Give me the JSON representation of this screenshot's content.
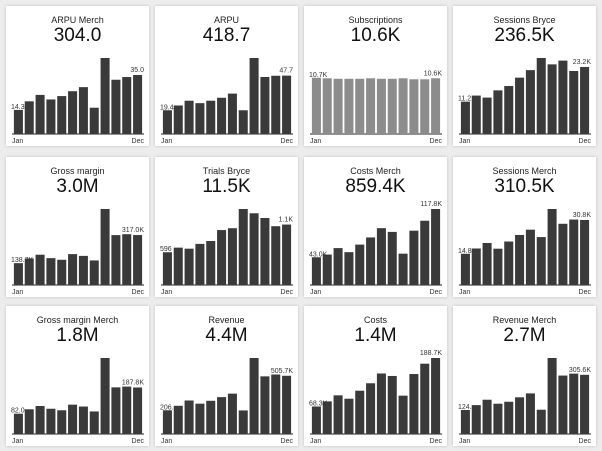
{
  "chart_data": [
    {
      "type": "bar",
      "title": "ARPU Merch",
      "kpi": "304.0",
      "categories": [
        "Jan",
        "Feb",
        "Mar",
        "Apr",
        "May",
        "Jun",
        "Jul",
        "Aug",
        "Sep",
        "Oct",
        "Nov",
        "Dec"
      ],
      "values": [
        14.3,
        19.4,
        23.2,
        20.5,
        22.5,
        25.4,
        27.8,
        15.6,
        45.1,
        32.2,
        33.8,
        35.0
      ],
      "first_label": "14.3",
      "last_label": "35.0",
      "xlabels": [
        "Jan",
        "Dec"
      ],
      "color": "#3a3a3a"
    },
    {
      "type": "bar",
      "title": "ARPU",
      "kpi": "418.7",
      "categories": [
        "Jan",
        "Feb",
        "Mar",
        "Apr",
        "May",
        "Jun",
        "Jul",
        "Aug",
        "Sep",
        "Oct",
        "Nov",
        "Dec"
      ],
      "values": [
        19.4,
        23.3,
        27.2,
        25.2,
        27.2,
        29.6,
        33.0,
        19.4,
        62.1,
        46.6,
        47.6,
        47.7
      ],
      "first_label": "19.4",
      "last_label": "47.7",
      "xlabels": [
        "Jan",
        "Dec"
      ],
      "color": "#3a3a3a"
    },
    {
      "type": "bar",
      "title": "Subscriptions",
      "kpi": "10.6K",
      "categories": [
        "Jan",
        "Feb",
        "Mar",
        "Apr",
        "May",
        "Jun",
        "Jul",
        "Aug",
        "Sep",
        "Oct",
        "Nov",
        "Dec"
      ],
      "values": [
        10.7,
        10.6,
        10.5,
        10.5,
        10.5,
        10.6,
        10.5,
        10.5,
        10.6,
        10.4,
        10.4,
        10.6
      ],
      "first_label": "10.7K",
      "last_label": "10.6K",
      "xlabels": [
        "Jan",
        "Dec"
      ],
      "color": "#8c8c8c",
      "faded": true
    },
    {
      "type": "bar",
      "title": "Sessions Bryce",
      "kpi": "236.5K",
      "categories": [
        "Jan",
        "Feb",
        "Mar",
        "Apr",
        "May",
        "Jun",
        "Jul",
        "Aug",
        "Sep",
        "Oct",
        "Nov",
        "Dec"
      ],
      "values": [
        11.2,
        13.3,
        12.6,
        15.1,
        16.6,
        19.5,
        22.1,
        26.3,
        24.1,
        25.4,
        21.8,
        23.2
      ],
      "first_label": "11.2",
      "last_label": "23.2K",
      "xlabels": [
        "Jan",
        "Dec"
      ],
      "color": "#3a3a3a"
    },
    {
      "type": "bar",
      "title": "Gross margin",
      "kpi": "3.0M",
      "categories": [
        "Jan",
        "Feb",
        "Mar",
        "Apr",
        "May",
        "Jun",
        "Jul",
        "Aug",
        "Sep",
        "Oct",
        "Nov",
        "Dec"
      ],
      "values": [
        138.7,
        168.4,
        192.3,
        170.5,
        160.2,
        196.1,
        184.7,
        155.8,
        482.4,
        316.6,
        322.3,
        317.0
      ],
      "first_label": "138.7K",
      "last_label": "317.0K",
      "xlabels": [
        "Jan",
        "Dec"
      ],
      "color": "#3a3a3a"
    },
    {
      "type": "bar",
      "title": "Trials Bryce",
      "kpi": "11.5K",
      "categories": [
        "Jan",
        "Feb",
        "Mar",
        "Apr",
        "May",
        "Jun",
        "Jul",
        "Aug",
        "Sep",
        "Oct",
        "Nov",
        "Dec"
      ],
      "values": [
        596,
        680,
        661,
        748,
        801,
        1000,
        1033,
        1383,
        1305,
        1219,
        1070,
        1100
      ],
      "first_label": "596",
      "last_label": "1.1K",
      "xlabels": [
        "Jan",
        "Dec"
      ],
      "color": "#3a3a3a"
    },
    {
      "type": "bar",
      "title": "Costs Merch",
      "kpi": "859.4K",
      "categories": [
        "Jan",
        "Feb",
        "Mar",
        "Apr",
        "May",
        "Jun",
        "Jul",
        "Aug",
        "Sep",
        "Oct",
        "Nov",
        "Dec"
      ],
      "values": [
        43.0,
        47.2,
        57.2,
        50.9,
        62.6,
        73.7,
        88.1,
        82.3,
        48.6,
        84.2,
        99.6,
        117.8
      ],
      "first_label": "43.0K",
      "last_label": "117.8K",
      "xlabels": [
        "Jan",
        "Dec"
      ],
      "color": "#3a3a3a"
    },
    {
      "type": "bar",
      "title": "Sessions Merch",
      "kpi": "310.5K",
      "categories": [
        "Jan",
        "Feb",
        "Mar",
        "Apr",
        "May",
        "Jun",
        "Jul",
        "Aug",
        "Sep",
        "Oct",
        "Nov",
        "Dec"
      ],
      "values": [
        14.8,
        17.3,
        19.9,
        17.2,
        20.6,
        23.7,
        26.2,
        22.7,
        36.0,
        29.0,
        31.0,
        30.8
      ],
      "first_label": "14.8",
      "last_label": "30.8K",
      "xlabels": [
        "Jan",
        "Dec"
      ],
      "color": "#3a3a3a"
    },
    {
      "type": "bar",
      "title": "Gross margin Merch",
      "kpi": "1.8M",
      "categories": [
        "Jan",
        "Feb",
        "Mar",
        "Apr",
        "May",
        "Jun",
        "Jul",
        "Aug",
        "Sep",
        "Oct",
        "Nov",
        "Dec"
      ],
      "values": [
        82.0,
        99.8,
        113.0,
        102.0,
        95.8,
        118.5,
        110.9,
        91.0,
        306.9,
        188.4,
        191.5,
        187.8
      ],
      "first_label": "82.0",
      "last_label": "187.8K",
      "xlabels": [
        "Jan",
        "Dec"
      ],
      "color": "#3a3a3a"
    },
    {
      "type": "bar",
      "title": "Revenue",
      "kpi": "4.4M",
      "categories": [
        "Jan",
        "Feb",
        "Mar",
        "Apr",
        "May",
        "Jun",
        "Jul",
        "Aug",
        "Sep",
        "Oct",
        "Nov",
        "Dec"
      ],
      "values": [
        206.0,
        245.0,
        291.0,
        263.6,
        288.4,
        320.2,
        350.6,
        204.5,
        660.0,
        500.6,
        516.7,
        505.7
      ],
      "first_label": "206.",
      "last_label": "505.7K",
      "xlabels": [
        "Jan",
        "Dec"
      ],
      "color": "#3a3a3a"
    },
    {
      "type": "bar",
      "title": "Costs",
      "kpi": "1.4M",
      "categories": [
        "Jan",
        "Feb",
        "Mar",
        "Apr",
        "May",
        "Jun",
        "Jul",
        "Aug",
        "Sep",
        "Oct",
        "Nov",
        "Dec"
      ],
      "values": [
        68.3,
        81.0,
        96.0,
        87.6,
        107.5,
        126.0,
        150.3,
        144.1,
        95.2,
        148.9,
        174.6,
        188.7
      ],
      "first_label": "68.3K",
      "last_label": "188.7K",
      "xlabels": [
        "Jan",
        "Dec"
      ],
      "color": "#3a3a3a"
    },
    {
      "type": "bar",
      "title": "Revenue Merch",
      "kpi": "2.7M",
      "categories": [
        "Jan",
        "Feb",
        "Mar",
        "Apr",
        "May",
        "Jun",
        "Jul",
        "Aug",
        "Sep",
        "Oct",
        "Nov",
        "Dec"
      ],
      "values": [
        124.0,
        149.2,
        177.0,
        156.4,
        166.5,
        189.5,
        209.6,
        125.4,
        392.4,
        301.7,
        311.7,
        305.6
      ],
      "first_label": "124.",
      "last_label": "305.6K",
      "xlabels": [
        "Jan",
        "Dec"
      ],
      "color": "#3a3a3a"
    }
  ]
}
